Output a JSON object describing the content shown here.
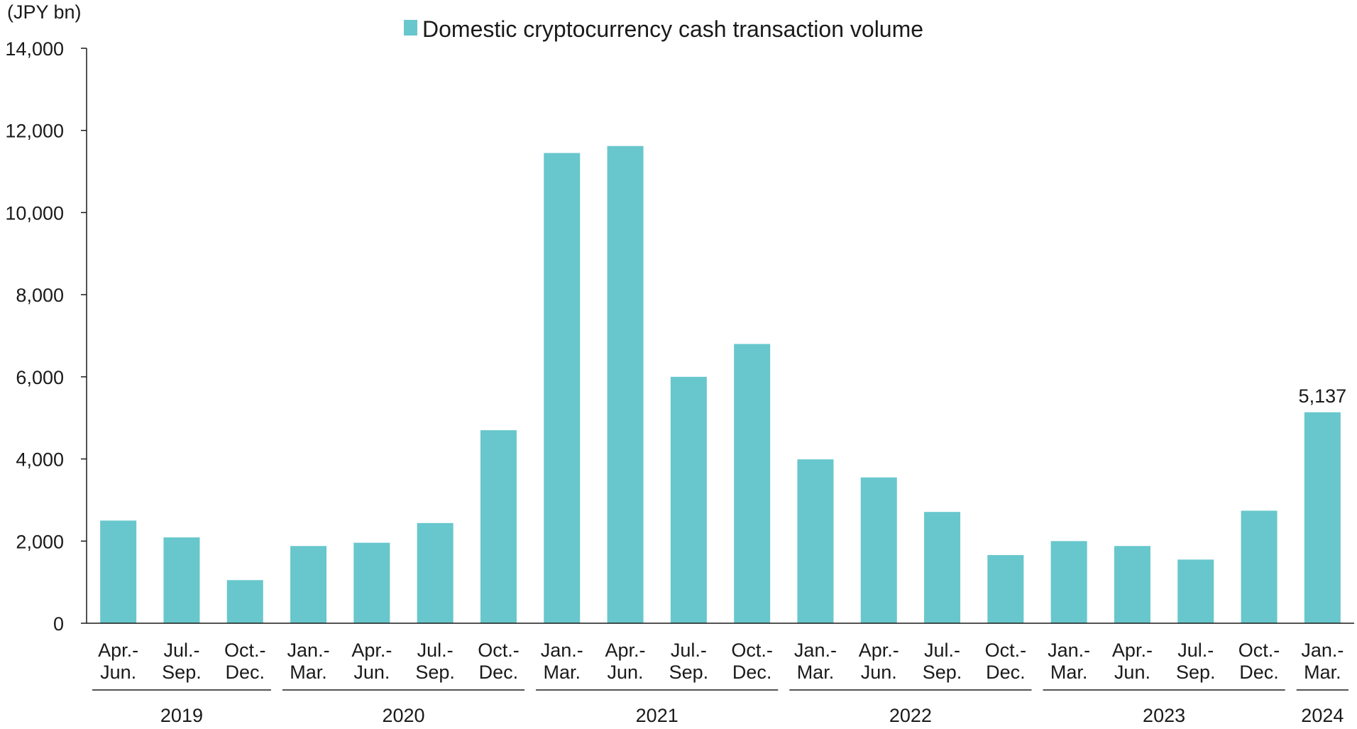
{
  "chart_data": {
    "type": "bar",
    "unit_label": "(JPY bn)",
    "legend": [
      {
        "name": "Domestic cryptocurrency cash transaction volume",
        "color": "#67C7CC"
      }
    ],
    "legend_placement": "top-center",
    "ylim": [
      0,
      14000
    ],
    "yticks": [
      "0",
      "2,000",
      "4,000",
      "6,000",
      "8,000",
      "10,000",
      "12,000",
      "14,000"
    ],
    "ytick_values": [
      0,
      2000,
      4000,
      6000,
      8000,
      10000,
      12000,
      14000
    ],
    "grid": false,
    "categories": [
      [
        "Apr.-",
        "Jun."
      ],
      [
        "Jul.-",
        "Sep."
      ],
      [
        "Oct.-",
        "Dec."
      ],
      [
        "Jan.-",
        "Mar."
      ],
      [
        "Apr.-",
        "Jun."
      ],
      [
        "Jul.-",
        "Sep."
      ],
      [
        "Oct.-",
        "Dec."
      ],
      [
        "Jan.-",
        "Mar."
      ],
      [
        "Apr.-",
        "Jun."
      ],
      [
        "Jul.-",
        "Sep."
      ],
      [
        "Oct.-",
        "Dec."
      ],
      [
        "Jan.-",
        "Mar."
      ],
      [
        "Apr.-",
        "Jun."
      ],
      [
        "Jul.-",
        "Sep."
      ],
      [
        "Oct.-",
        "Dec."
      ],
      [
        "Jan.-",
        "Mar."
      ],
      [
        "Apr.-",
        "Jun."
      ],
      [
        "Jul.-",
        "Sep."
      ],
      [
        "Oct.-",
        "Dec."
      ],
      [
        "Jan.-",
        "Mar."
      ]
    ],
    "year_groups": [
      {
        "label": "2019",
        "count": 3
      },
      {
        "label": "2020",
        "count": 4
      },
      {
        "label": "2021",
        "count": 4
      },
      {
        "label": "2022",
        "count": 4
      },
      {
        "label": "2023",
        "count": 4
      },
      {
        "label": "2024",
        "count": 1
      }
    ],
    "series": [
      {
        "name": "Domestic cryptocurrency cash transaction volume",
        "color": "#67C7CC",
        "values": [
          2500,
          2090,
          1050,
          1880,
          1960,
          2440,
          4700,
          11450,
          11620,
          6000,
          6800,
          3990,
          3550,
          2710,
          1660,
          2000,
          1880,
          1550,
          2740,
          5137
        ]
      }
    ],
    "data_labels": [
      {
        "index": 19,
        "text": "5,137"
      }
    ]
  }
}
